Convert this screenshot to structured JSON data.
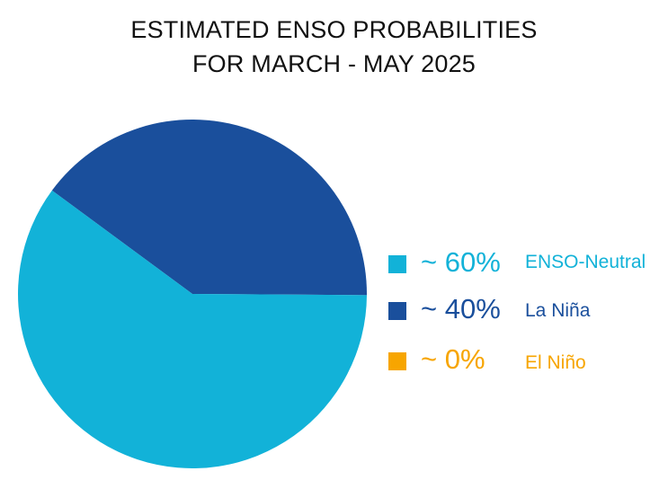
{
  "chart_data": {
    "type": "pie",
    "title_lines": [
      "ESTIMATED ENSO PROBABILITIES",
      "FOR MARCH - MAY 2025"
    ],
    "slices": [
      {
        "label": "ENSO-Neutral",
        "value": 60,
        "display": "~ 60%",
        "color": "#12b2d8"
      },
      {
        "label": "La Niña",
        "value": 40,
        "display": "~ 40%",
        "color": "#1a4f9c"
      },
      {
        "label": "El Niño",
        "value": 0,
        "display": "~ 0%",
        "color": "#f7a500"
      }
    ],
    "legend_position": "right"
  }
}
